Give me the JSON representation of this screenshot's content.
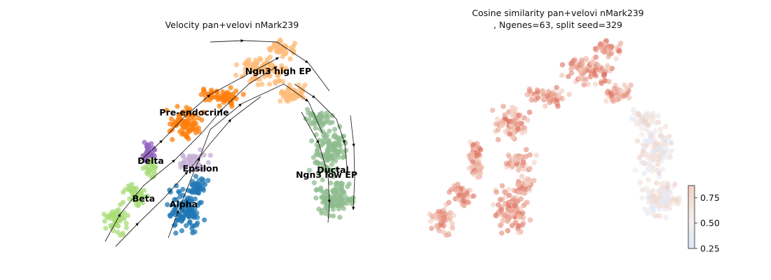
{
  "chart_data": [
    {
      "type": "scatter",
      "title": "Velocity pan+velovi nMark239",
      "xlabel": "",
      "ylabel": "",
      "axes_visible": false,
      "overlay": "velocity streamlines with arrowheads",
      "legend": "on data",
      "clusters": [
        {
          "name": "Ngn3 high EP",
          "color": "#ffbb78"
        },
        {
          "name": "Pre-endocrine",
          "color": "#ff7f0e"
        },
        {
          "name": "Delta",
          "color": "#9467bd"
        },
        {
          "name": "Epsilon",
          "color": "#c5b0d5"
        },
        {
          "name": "Beta",
          "color": "#aadc7a"
        },
        {
          "name": "Alpha",
          "color": "#1f77b4"
        },
        {
          "name": "Ductal",
          "color": "#8fbc8f"
        },
        {
          "name": "Ngn3 low EP",
          "color": "#98c08a"
        }
      ]
    },
    {
      "type": "scatter",
      "title": "Cosine similarity pan+velovi nMark239\n, Ngenes=63, split seed=329",
      "xlabel": "",
      "ylabel": "",
      "axes_visible": false,
      "colorbar": {
        "ticks": [
          "0.25",
          "0.50",
          "0.75"
        ],
        "range": [
          0.25,
          0.87
        ],
        "cmap": "coolwarm",
        "colors": {
          "low": "#dde7f7",
          "mid": "#f4efee",
          "high": "#f2cfc1"
        }
      }
    }
  ]
}
